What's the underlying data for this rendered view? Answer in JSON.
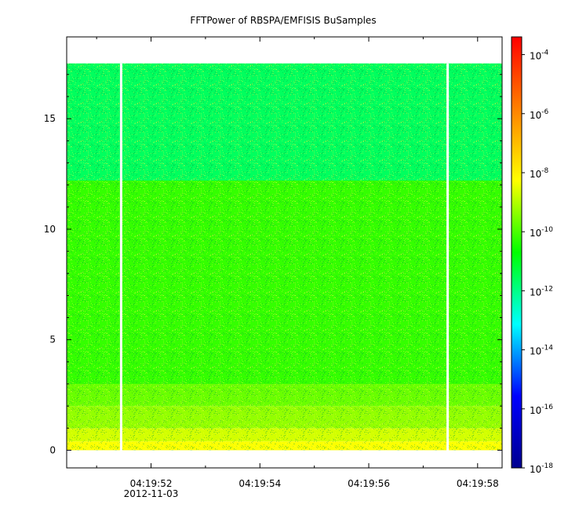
{
  "chart_data": {
    "type": "heatmap",
    "title": "FFTPower of RBSPA/EMFISIS  BuSamples",
    "xlabel": "",
    "ylabel": "",
    "x_range": [
      "04:19:50.45",
      "04:19:58.45"
    ],
    "x_ticks": [
      {
        "time": "04:19:52",
        "label": "04:19:52",
        "date_label": "2012-11-03"
      },
      {
        "time": "04:19:54",
        "label": "04:19:54",
        "date_label": ""
      },
      {
        "time": "04:19:56",
        "label": "04:19:56",
        "date_label": ""
      },
      {
        "time": "04:19:58",
        "label": "04:19:58",
        "date_label": ""
      }
    ],
    "y_range": [
      -0.8,
      18.7
    ],
    "y_ticks": [
      0,
      5,
      10,
      15
    ],
    "y_tick_labels": [
      "0",
      "5",
      "10",
      "15"
    ],
    "data_y_max": 17.5,
    "data_gaps": [
      "04:19:51.45",
      "04:19:57.45"
    ],
    "colorbar": {
      "scale": "log",
      "range_exponent": [
        -18,
        -3.4
      ],
      "ticks": [
        {
          "exp": -4,
          "base": "10",
          "sup": "-4"
        },
        {
          "exp": -6,
          "base": "10",
          "sup": "-6"
        },
        {
          "exp": -8,
          "base": "10",
          "sup": "-8"
        },
        {
          "exp": -10,
          "base": "10",
          "sup": "-10"
        },
        {
          "exp": -12,
          "base": "10",
          "sup": "-12"
        },
        {
          "exp": -14,
          "base": "10",
          "sup": "-14"
        },
        {
          "exp": -16,
          "base": "10",
          "sup": "-16"
        },
        {
          "exp": -18,
          "base": "10",
          "sup": "-18"
        }
      ],
      "colors": [
        "#00008f",
        "#0000ff",
        "#00ffff",
        "#00ff00",
        "#ffff00",
        "#ff8000",
        "#ff0000"
      ]
    },
    "bands": [
      {
        "y_from": 0,
        "y_to": 0.4,
        "level_exp": -8.3
      },
      {
        "y_from": 0.4,
        "y_to": 1.0,
        "level_exp": -8.7
      },
      {
        "y_from": 1.0,
        "y_to": 2.0,
        "level_exp": -9.3
      },
      {
        "y_from": 2.0,
        "y_to": 3.0,
        "level_exp": -9.7
      },
      {
        "y_from": 3.0,
        "y_to": 12.2,
        "level_exp": -10.2
      },
      {
        "y_from": 12.2,
        "y_to": 17.5,
        "level_exp": -11.6
      }
    ]
  }
}
